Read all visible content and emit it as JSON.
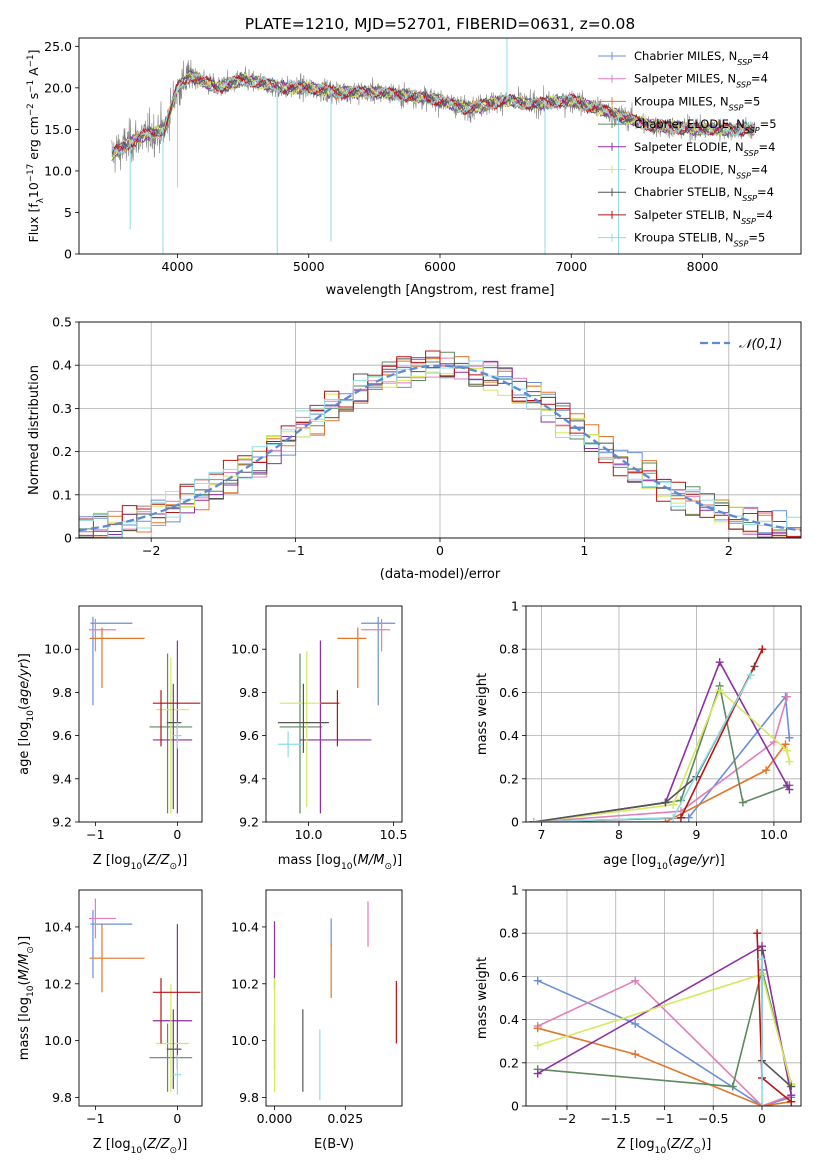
{
  "chart_data": [
    {
      "id": "spectrum",
      "type": "line",
      "title": "PLATE=1210, MJD=52701, FIBERID=0631, z=0.08",
      "xlabel": "wavelength [Angstrom, rest frame]",
      "ylabel": "Flux [f_λ10^-17 erg cm^-2 s^-1 A^-1]",
      "xlim": [
        3250,
        8750
      ],
      "ylim": [
        0,
        26
      ],
      "xticks": [
        4000,
        5000,
        6000,
        7000,
        8000
      ],
      "yticks": [
        0,
        5,
        10,
        15,
        20,
        25
      ],
      "data_range": [
        3500,
        8400
      ],
      "legend_position": "top-right",
      "series": [
        {
          "name": "Chabrier MILES, N_SSP=4",
          "color": "#6a8fd8"
        },
        {
          "name": "Salpeter MILES, N_SSP=4",
          "color": "#e17fbb"
        },
        {
          "name": "Kroupa MILES, N_SSP=5",
          "color": "#e2762a"
        },
        {
          "name": "Chabrier ELODIE, N_SSP=5",
          "color": "#5e8a62"
        },
        {
          "name": "Salpeter ELODIE, N_SSP=4",
          "color": "#8e2fa4"
        },
        {
          "name": "Kroupa ELODIE, N_SSP=4",
          "color": "#d6e85c"
        },
        {
          "name": "Chabrier STELIB, N_SSP=4",
          "color": "#555555"
        },
        {
          "name": "Salpeter STELIB, N_SSP=4",
          "color": "#b81414"
        },
        {
          "name": "Kroupa STELIB, N_SSP=5",
          "color": "#8fdde3"
        }
      ],
      "continuum_points": [
        [
          3500,
          12
        ],
        [
          3700,
          14
        ],
        [
          3900,
          15
        ],
        [
          4000,
          20
        ],
        [
          4100,
          21.5
        ],
        [
          4300,
          20
        ],
        [
          4500,
          21
        ],
        [
          4800,
          20
        ],
        [
          5000,
          20
        ],
        [
          5200,
          19.5
        ],
        [
          5500,
          19.5
        ],
        [
          5800,
          19
        ],
        [
          6000,
          18.5
        ],
        [
          6200,
          17.5
        ],
        [
          6500,
          18.5
        ],
        [
          6700,
          18
        ],
        [
          7000,
          18.5
        ],
        [
          7300,
          17
        ],
        [
          7600,
          15.5
        ],
        [
          8000,
          15
        ],
        [
          8400,
          15
        ]
      ]
    },
    {
      "id": "residuals",
      "type": "histogram",
      "xlabel": "(data-model)/error",
      "ylabel": "Normed distribution",
      "xlim": [
        -2.5,
        2.5
      ],
      "ylim": [
        0,
        0.5
      ],
      "xticks": [
        -2,
        -1,
        0,
        1,
        2
      ],
      "yticks": [
        0.0,
        0.1,
        0.2,
        0.3,
        0.4,
        0.5
      ],
      "bin_width": 0.1,
      "legend": "𝒩(0,1)",
      "legend_position": "top-right",
      "reference_color": "#5b8bd6"
    },
    {
      "id": "z-age",
      "type": "errorbar",
      "xlabel": "Z [log10(Z/Z⊙)]",
      "ylabel": "age  [log10(age/yr)]",
      "xlim": [
        -1.2,
        0.3
      ],
      "ylim": [
        9.2,
        10.2
      ],
      "xticks": [
        -1,
        0
      ],
      "yticks": [
        9.2,
        9.4,
        9.6,
        9.8,
        10.0
      ],
      "points": [
        {
          "color": "#6a8fd8",
          "x": -1.03,
          "xerr": [
            0.03,
            0.48
          ],
          "y": 10.12,
          "yerr": [
            0.38,
            0.03
          ]
        },
        {
          "color": "#e17fbb",
          "x": -1.0,
          "xerr": [
            0.08,
            0.25
          ],
          "y": 10.09,
          "yerr": [
            0.1,
            0.05
          ]
        },
        {
          "color": "#e2762a",
          "x": -0.92,
          "xerr": [
            0.15,
            0.52
          ],
          "y": 10.05,
          "yerr": [
            0.23,
            0.05
          ]
        },
        {
          "color": "#5e8a62",
          "x": -0.12,
          "xerr": [
            0.22,
            0.3
          ],
          "y": 9.64,
          "yerr": [
            0.4,
            0.34
          ]
        },
        {
          "color": "#8e2fa4",
          "x": 0.0,
          "xerr": [
            0.3,
            0.18
          ],
          "y": 9.58,
          "yerr": [
            0.34,
            0.46
          ]
        },
        {
          "color": "#d6e85c",
          "x": -0.08,
          "xerr": [
            0.18,
            0.22
          ],
          "y": 9.72,
          "yerr": [
            0.48,
            0.24
          ]
        },
        {
          "color": "#555555",
          "x": -0.05,
          "xerr": [
            0.08,
            0.1
          ],
          "y": 9.66,
          "yerr": [
            0.4,
            0.18
          ]
        },
        {
          "color": "#b81414",
          "x": -0.2,
          "xerr": [
            0.1,
            0.48
          ],
          "y": 9.75,
          "yerr": [
            0.2,
            0.06
          ]
        },
        {
          "color": "#8fdde3",
          "x": 0.0,
          "xerr": [
            0.05,
            0.05
          ],
          "y": 9.6,
          "yerr": [
            0.06,
            0.06
          ]
        }
      ]
    },
    {
      "id": "mass-age",
      "type": "errorbar",
      "xlabel": "mass [log10(M/M⊙)]",
      "ylabel": "",
      "xlim": [
        9.75,
        10.55
      ],
      "ylim": [
        9.2,
        10.2
      ],
      "xticks": [
        10.0,
        10.5
      ],
      "yticks": [
        9.2,
        9.4,
        9.6,
        9.8,
        10.0
      ],
      "points": [
        {
          "color": "#6a8fd8",
          "x": 10.41,
          "xerr": [
            0.1,
            0.1
          ],
          "y": 10.12,
          "yerr": [
            0.38,
            0.03
          ]
        },
        {
          "color": "#e17fbb",
          "x": 10.43,
          "xerr": [
            0.12,
            0.05
          ],
          "y": 10.09,
          "yerr": [
            0.1,
            0.05
          ]
        },
        {
          "color": "#e2762a",
          "x": 10.29,
          "xerr": [
            0.12,
            0.05
          ],
          "y": 10.05,
          "yerr": [
            0.23,
            0.05
          ]
        },
        {
          "color": "#5e8a62",
          "x": 9.95,
          "xerr": [
            0.12,
            0.13
          ],
          "y": 9.64,
          "yerr": [
            0.4,
            0.34
          ]
        },
        {
          "color": "#8e2fa4",
          "x": 10.07,
          "xerr": [
            0.12,
            0.3
          ],
          "y": 9.58,
          "yerr": [
            0.34,
            0.46
          ]
        },
        {
          "color": "#d6e85c",
          "x": 9.99,
          "xerr": [
            0.16,
            0.2
          ],
          "y": 9.75,
          "yerr": [
            0.48,
            0.24
          ]
        },
        {
          "color": "#555555",
          "x": 9.97,
          "xerr": [
            0.15,
            0.15
          ],
          "y": 9.66,
          "yerr": [
            0.14,
            0.18
          ]
        },
        {
          "color": "#b81414",
          "x": 10.17,
          "xerr": [
            0.1,
            0.01
          ],
          "y": 9.75,
          "yerr": [
            0.2,
            0.06
          ]
        },
        {
          "color": "#8fdde3",
          "x": 9.88,
          "xerr": [
            0.06,
            0.08
          ],
          "y": 9.56,
          "yerr": [
            0.06,
            0.06
          ]
        }
      ]
    },
    {
      "id": "age-weight",
      "type": "line",
      "xlabel": "age  [log10(age/yr)]",
      "ylabel": "mass weight",
      "xlim": [
        6.8,
        10.35
      ],
      "ylim": [
        0,
        1.0
      ],
      "xticks": [
        7,
        8,
        9,
        10
      ],
      "yticks": [
        0.0,
        0.2,
        0.4,
        0.6,
        0.8,
        1.0
      ],
      "series": [
        {
          "color": "#6a8fd8",
          "x": [
            6.9,
            8.9,
            10.15,
            10.2
          ],
          "y": [
            0.0,
            0.02,
            0.58,
            0.39
          ]
        },
        {
          "color": "#e17fbb",
          "x": [
            6.9,
            8.8,
            10.0,
            10.17
          ],
          "y": [
            0.0,
            0.05,
            0.37,
            0.58
          ]
        },
        {
          "color": "#e2762a",
          "x": [
            6.9,
            8.6,
            9.9,
            10.15
          ],
          "y": [
            0.0,
            0.0,
            0.24,
            0.36
          ]
        },
        {
          "color": "#5e8a62",
          "x": [
            6.9,
            8.8,
            9.3,
            9.6,
            10.2
          ],
          "y": [
            0.0,
            0.1,
            0.63,
            0.09,
            0.17
          ]
        },
        {
          "color": "#8e2fa4",
          "x": [
            6.9,
            8.6,
            9.3,
            10.17,
            10.2
          ],
          "y": [
            0.0,
            0.09,
            0.74,
            0.17,
            0.15
          ]
        },
        {
          "color": "#d6e85c",
          "x": [
            6.9,
            8.7,
            9.3,
            10.17,
            10.2
          ],
          "y": [
            0.0,
            0.08,
            0.61,
            0.33,
            0.28
          ]
        },
        {
          "color": "#555555",
          "x": [
            6.9,
            8.6,
            9.0,
            9.75
          ],
          "y": [
            0.0,
            0.09,
            0.21,
            0.72
          ]
        },
        {
          "color": "#b81414",
          "x": [
            6.9,
            8.8,
            9.85
          ],
          "y": [
            0.0,
            0.02,
            0.8
          ]
        },
        {
          "color": "#8fdde3",
          "x": [
            6.9,
            8.7,
            9.7
          ],
          "y": [
            0.0,
            0.02,
            0.68
          ]
        }
      ]
    },
    {
      "id": "z-mass",
      "type": "errorbar",
      "xlabel": "Z [log10(Z/Z⊙)]",
      "ylabel": "mass [log10(M/M⊙)]",
      "xlim": [
        -1.2,
        0.3
      ],
      "ylim": [
        9.77,
        10.53
      ],
      "xticks": [
        -1,
        0
      ],
      "yticks": [
        9.8,
        10.0,
        10.2,
        10.4
      ],
      "points": [
        {
          "color": "#6a8fd8",
          "x": -1.03,
          "xerr": [
            0.03,
            0.48
          ],
          "y": 10.41,
          "yerr": [
            0.19,
            0.05
          ]
        },
        {
          "color": "#e17fbb",
          "x": -1.0,
          "xerr": [
            0.08,
            0.25
          ],
          "y": 10.43,
          "yerr": [
            0.07,
            0.07
          ]
        },
        {
          "color": "#e2762a",
          "x": -0.92,
          "xerr": [
            0.15,
            0.52
          ],
          "y": 10.29,
          "yerr": [
            0.12,
            0.12
          ]
        },
        {
          "color": "#5e8a62",
          "x": -0.12,
          "xerr": [
            0.22,
            0.3
          ],
          "y": 9.94,
          "yerr": [
            0.12,
            0.12
          ]
        },
        {
          "color": "#8e2fa4",
          "x": 0.0,
          "xerr": [
            0.3,
            0.18
          ],
          "y": 10.07,
          "yerr": [
            0.17,
            0.34
          ]
        },
        {
          "color": "#d6e85c",
          "x": -0.08,
          "xerr": [
            0.18,
            0.22
          ],
          "y": 9.99,
          "yerr": [
            0.17,
            0.21
          ]
        },
        {
          "color": "#555555",
          "x": -0.05,
          "xerr": [
            0.08,
            0.1
          ],
          "y": 9.97,
          "yerr": [
            0.14,
            0.14
          ]
        },
        {
          "color": "#b81414",
          "x": -0.2,
          "xerr": [
            0.1,
            0.48
          ],
          "y": 10.17,
          "yerr": [
            0.18,
            0.05
          ]
        },
        {
          "color": "#8fdde3",
          "x": 0.0,
          "xerr": [
            0.05,
            0.05
          ],
          "y": 9.88,
          "yerr": [
            0.07,
            0.07
          ]
        }
      ]
    },
    {
      "id": "ebv-mass",
      "type": "errorbar",
      "xlabel": "E(B-V)",
      "ylabel": "",
      "xlim": [
        -0.003,
        0.045
      ],
      "ylim": [
        9.77,
        10.53
      ],
      "xticks": [
        0.0,
        0.025
      ],
      "xticklabels": [
        "0.000",
        "0.025"
      ],
      "yticks": [
        9.8,
        10.0,
        10.2,
        10.4
      ],
      "points": [
        {
          "color": "#6a8fd8",
          "x": 0.02,
          "y": 10.38,
          "yerr": [
            0.05,
            0.05
          ]
        },
        {
          "color": "#e17fbb",
          "x": 0.033,
          "y": 10.43,
          "yerr": [
            0.1,
            0.06
          ]
        },
        {
          "color": "#e2762a",
          "x": 0.02,
          "y": 10.25,
          "yerr": [
            0.1,
            0.09
          ]
        },
        {
          "color": "#5e8a62",
          "x": 0.0,
          "y": 9.98,
          "yerr": [
            0.08,
            0.08
          ]
        },
        {
          "color": "#8e2fa4",
          "x": 0.0,
          "y": 10.3,
          "yerr": [
            0.12,
            0.12
          ]
        },
        {
          "color": "#d6e85c",
          "x": 0.0,
          "y": 10.02,
          "yerr": [
            0.2,
            0.2
          ]
        },
        {
          "color": "#555555",
          "x": 0.01,
          "y": 9.98,
          "yerr": [
            0.16,
            0.13
          ]
        },
        {
          "color": "#b81414",
          "x": 0.043,
          "y": 10.1,
          "yerr": [
            0.11,
            0.11
          ]
        },
        {
          "color": "#8fdde3",
          "x": 0.016,
          "y": 9.94,
          "yerr": [
            0.15,
            0.1
          ]
        }
      ]
    },
    {
      "id": "z-weight",
      "type": "line",
      "xlabel": "Z [log10(Z/Z⊙)]",
      "ylabel": "mass weight",
      "xlim": [
        -2.42,
        0.4
      ],
      "ylim": [
        0,
        1.0
      ],
      "xticks": [
        -2.0,
        -1.5,
        -1.0,
        -0.5,
        0.0
      ],
      "yticks": [
        0.0,
        0.2,
        0.4,
        0.6,
        0.8,
        1.0
      ],
      "series": [
        {
          "color": "#6a8fd8",
          "x": [
            -2.3,
            -1.3,
            0.0,
            0.3
          ],
          "y": [
            0.58,
            0.38,
            0.0,
            0.04
          ]
        },
        {
          "color": "#e17fbb",
          "x": [
            -2.3,
            -1.3,
            0.0,
            0.3
          ],
          "y": [
            0.37,
            0.58,
            0.0,
            0.05
          ]
        },
        {
          "color": "#e2762a",
          "x": [
            -2.3,
            -1.3,
            0.0,
            0.3
          ],
          "y": [
            0.36,
            0.24,
            0.0,
            0.02
          ]
        },
        {
          "color": "#5e8a62",
          "x": [
            -2.3,
            -0.3,
            0.0,
            0.3
          ],
          "y": [
            0.17,
            0.09,
            0.63,
            0.1
          ]
        },
        {
          "color": "#8e2fa4",
          "x": [
            -2.3,
            0.0,
            0.3
          ],
          "y": [
            0.15,
            0.74,
            0.05
          ]
        },
        {
          "color": "#d6e85c",
          "x": [
            -2.3,
            0.0,
            0.3
          ],
          "y": [
            0.28,
            0.61,
            0.1
          ]
        },
        {
          "color": "#555555",
          "x": [
            0.0,
            0.0,
            0.3
          ],
          "y": [
            0.72,
            0.21,
            0.09
          ]
        },
        {
          "color": "#b81414",
          "x": [
            -0.05,
            0.0,
            0.3
          ],
          "y": [
            0.8,
            0.13,
            0.02
          ]
        },
        {
          "color": "#8fdde3",
          "x": [
            0.0,
            0.0
          ],
          "y": [
            0.68,
            0.0
          ]
        }
      ]
    }
  ]
}
